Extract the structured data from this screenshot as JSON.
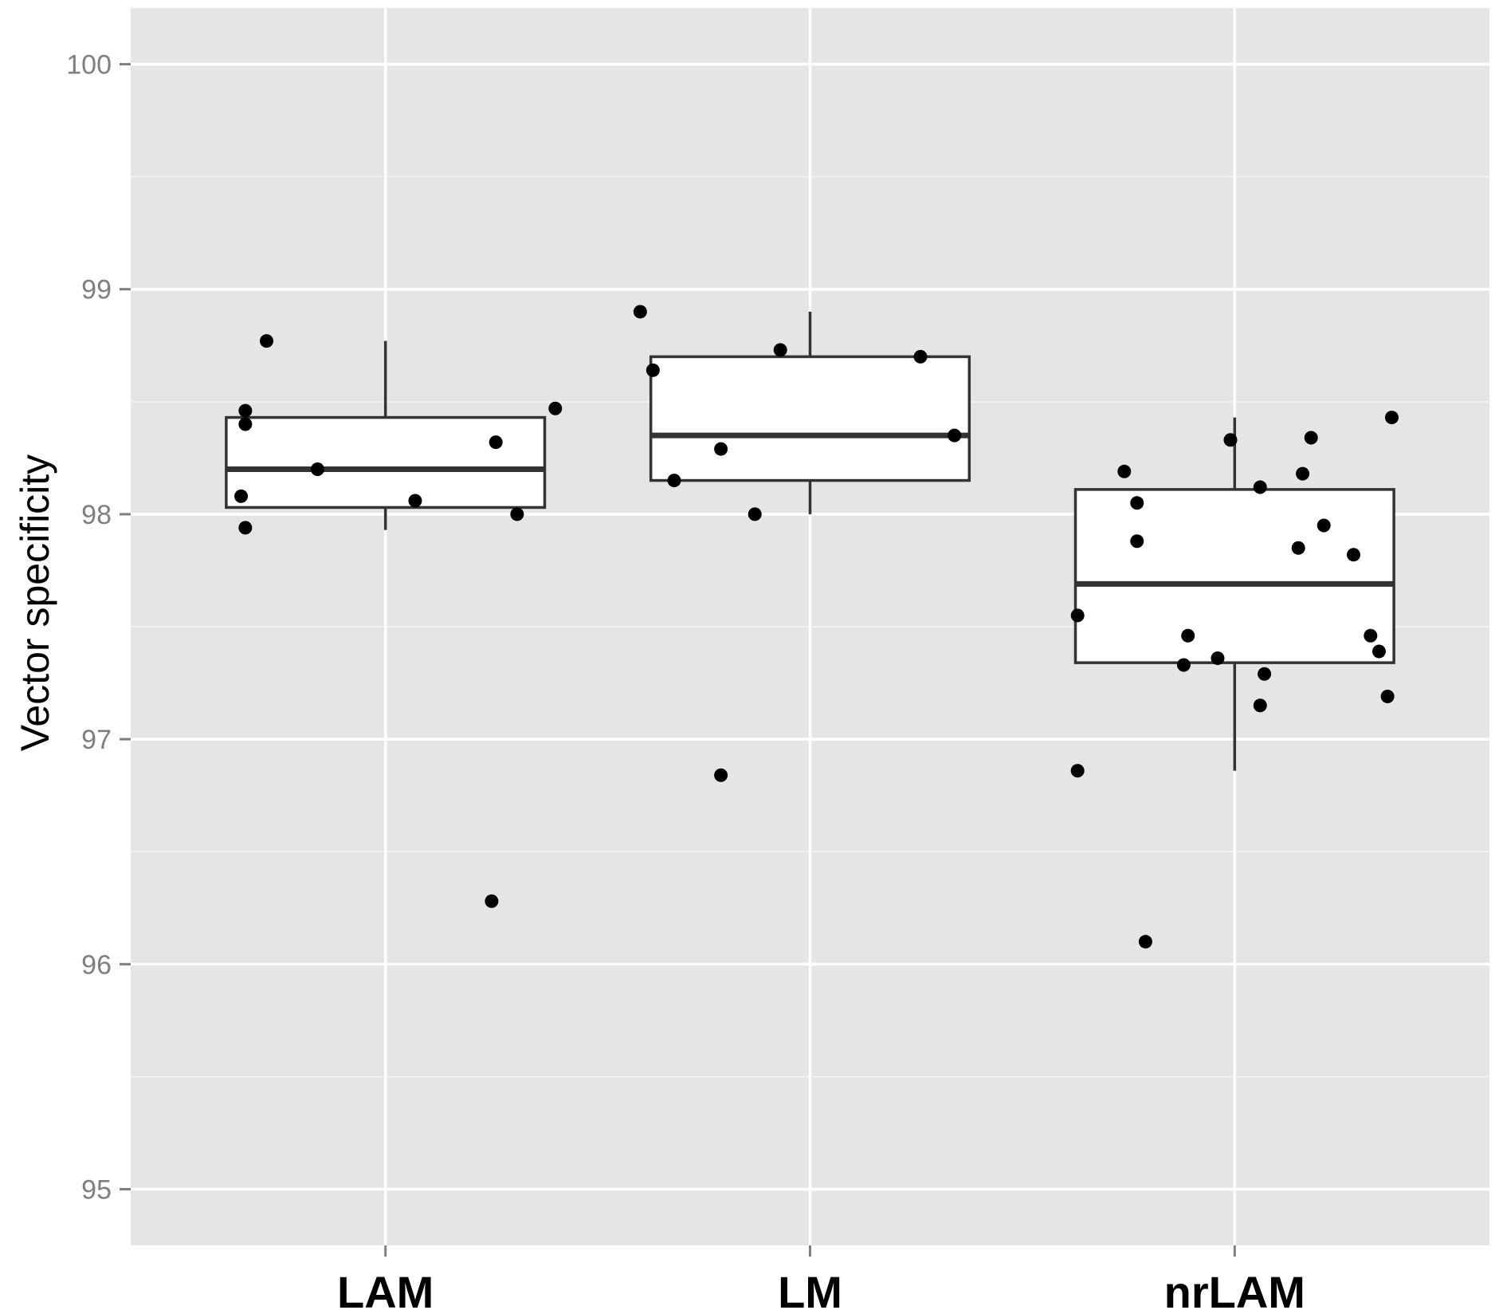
{
  "chart_data": {
    "type": "boxplot",
    "title": "",
    "xlabel": "",
    "ylabel": "Vector specificity",
    "ylim": [
      94.75,
      100.25
    ],
    "yticks": [
      95,
      96,
      97,
      98,
      99,
      100
    ],
    "ytick_labels": [
      "95",
      "96",
      "97",
      "98",
      "99",
      "100"
    ],
    "y_minor_ticks": [
      95.5,
      96.5,
      97.5,
      98.5,
      99.5
    ],
    "grid": true,
    "legend": "none",
    "colors": {
      "panel": "#e5e5e5",
      "grid": "#ffffff",
      "box_fill": "#ffffff",
      "box_stroke": "#333333",
      "point": "#000000",
      "tick_label": "#7f7f7f"
    },
    "categories": [
      "LAM",
      "LM",
      "nrLAM"
    ],
    "boxes": [
      {
        "category": "LAM",
        "whisker_low": 97.93,
        "q1": 98.03,
        "median": 98.2,
        "q3": 98.43,
        "whisker_high": 98.77
      },
      {
        "category": "LM",
        "whisker_low": 98.0,
        "q1": 98.15,
        "median": 98.35,
        "q3": 98.7,
        "whisker_high": 98.9
      },
      {
        "category": "nrLAM",
        "whisker_low": 96.86,
        "q1": 97.34,
        "median": 97.69,
        "q3": 98.11,
        "whisker_high": 98.43
      }
    ],
    "points": [
      {
        "category": "LAM",
        "jitter": -0.28,
        "y": 98.77
      },
      {
        "category": "LAM",
        "jitter": -0.33,
        "y": 98.46
      },
      {
        "category": "LAM",
        "jitter": -0.33,
        "y": 98.4
      },
      {
        "category": "LAM",
        "jitter": -0.16,
        "y": 98.2
      },
      {
        "category": "LAM",
        "jitter": -0.34,
        "y": 98.08
      },
      {
        "category": "LAM",
        "jitter": 0.07,
        "y": 98.06
      },
      {
        "category": "LAM",
        "jitter": -0.33,
        "y": 97.94
      },
      {
        "category": "LAM",
        "jitter": 0.26,
        "y": 98.32
      },
      {
        "category": "LAM",
        "jitter": 0.31,
        "y": 98.0
      },
      {
        "category": "LAM",
        "jitter": 0.4,
        "y": 98.47
      },
      {
        "category": "LAM",
        "jitter": 0.25,
        "y": 96.28
      },
      {
        "category": "LM",
        "jitter": -0.4,
        "y": 98.9
      },
      {
        "category": "LM",
        "jitter": -0.37,
        "y": 98.64
      },
      {
        "category": "LM",
        "jitter": -0.32,
        "y": 98.15
      },
      {
        "category": "LM",
        "jitter": -0.21,
        "y": 98.29
      },
      {
        "category": "LM",
        "jitter": -0.13,
        "y": 98.0
      },
      {
        "category": "LM",
        "jitter": -0.07,
        "y": 98.73
      },
      {
        "category": "LM",
        "jitter": 0.26,
        "y": 98.7
      },
      {
        "category": "LM",
        "jitter": 0.34,
        "y": 98.35
      },
      {
        "category": "LM",
        "jitter": -0.21,
        "y": 96.84
      },
      {
        "category": "nrLAM",
        "jitter": -0.37,
        "y": 97.55
      },
      {
        "category": "nrLAM",
        "jitter": -0.26,
        "y": 98.19
      },
      {
        "category": "nrLAM",
        "jitter": -0.23,
        "y": 98.05
      },
      {
        "category": "nrLAM",
        "jitter": -0.23,
        "y": 97.88
      },
      {
        "category": "nrLAM",
        "jitter": -0.11,
        "y": 97.46
      },
      {
        "category": "nrLAM",
        "jitter": -0.12,
        "y": 97.33
      },
      {
        "category": "nrLAM",
        "jitter": -0.04,
        "y": 97.36
      },
      {
        "category": "nrLAM",
        "jitter": -0.01,
        "y": 98.33
      },
      {
        "category": "nrLAM",
        "jitter": 0.06,
        "y": 98.12
      },
      {
        "category": "nrLAM",
        "jitter": 0.07,
        "y": 97.29
      },
      {
        "category": "nrLAM",
        "jitter": 0.06,
        "y": 97.15
      },
      {
        "category": "nrLAM",
        "jitter": 0.15,
        "y": 97.85
      },
      {
        "category": "nrLAM",
        "jitter": 0.16,
        "y": 98.18
      },
      {
        "category": "nrLAM",
        "jitter": 0.18,
        "y": 98.34
      },
      {
        "category": "nrLAM",
        "jitter": 0.21,
        "y": 97.95
      },
      {
        "category": "nrLAM",
        "jitter": 0.28,
        "y": 97.82
      },
      {
        "category": "nrLAM",
        "jitter": 0.32,
        "y": 97.46
      },
      {
        "category": "nrLAM",
        "jitter": 0.34,
        "y": 97.39
      },
      {
        "category": "nrLAM",
        "jitter": 0.36,
        "y": 97.19
      },
      {
        "category": "nrLAM",
        "jitter": 0.37,
        "y": 98.43
      },
      {
        "category": "nrLAM",
        "jitter": -0.37,
        "y": 96.86
      },
      {
        "category": "nrLAM",
        "jitter": -0.21,
        "y": 96.1
      }
    ]
  }
}
